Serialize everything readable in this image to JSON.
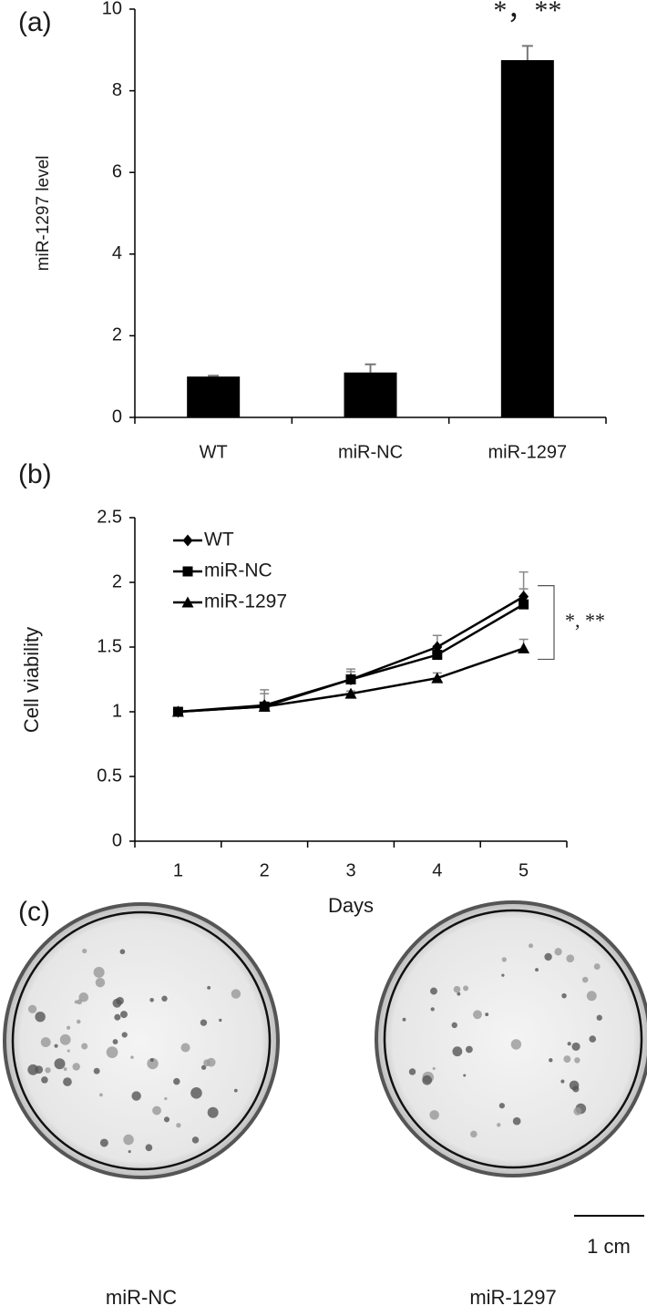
{
  "chart_data": [
    {
      "type": "bar",
      "panel": "(a)",
      "y_label": "miR-1297 level",
      "categories": [
        "WT",
        "miR-NC",
        "miR-1297"
      ],
      "values": [
        1,
        1.1,
        8.75
      ],
      "errors": [
        0.02,
        0.2,
        0.35
      ],
      "color": "#000000",
      "ylim": [
        0,
        10
      ],
      "yticks": [
        0,
        2,
        4,
        6,
        8,
        10
      ],
      "annotation": "*，**"
    },
    {
      "type": "line",
      "panel": "(b)",
      "y_label": "Cell viability",
      "x_label": "Days",
      "x": [
        1,
        2,
        3,
        4,
        5
      ],
      "xlim": [
        0.5,
        5.5
      ],
      "xticks": [
        1,
        2,
        3,
        4,
        5
      ],
      "ylim": [
        0,
        2.5
      ],
      "yticks": [
        0,
        0.5,
        1,
        1.5,
        2,
        2.5
      ],
      "legend": "upper left",
      "series": [
        {
          "name": "WT",
          "color": "#000000",
          "marker": "diamond",
          "values": [
            1,
            1.05,
            1.25,
            1.5,
            1.89
          ],
          "errors": [
            0,
            0.12,
            0.08,
            0.09,
            0.19
          ]
        },
        {
          "name": "miR-NC",
          "color": "#000000",
          "marker": "square",
          "values": [
            1,
            1.04,
            1.25,
            1.44,
            1.83
          ],
          "errors": [
            0,
            0.1,
            0.06,
            0.07,
            0.12
          ]
        },
        {
          "name": "miR-1297",
          "color": "#000000",
          "marker": "triangle",
          "values": [
            1,
            1.04,
            1.14,
            1.26,
            1.49
          ],
          "errors": [
            0,
            0.01,
            0.02,
            0.04,
            0.07
          ]
        }
      ],
      "annotation": "*, **"
    }
  ],
  "photo": {
    "panel": "(c)",
    "labels": [
      "miR-NC",
      "miR-1297"
    ],
    "scale_bar": "1 cm"
  }
}
